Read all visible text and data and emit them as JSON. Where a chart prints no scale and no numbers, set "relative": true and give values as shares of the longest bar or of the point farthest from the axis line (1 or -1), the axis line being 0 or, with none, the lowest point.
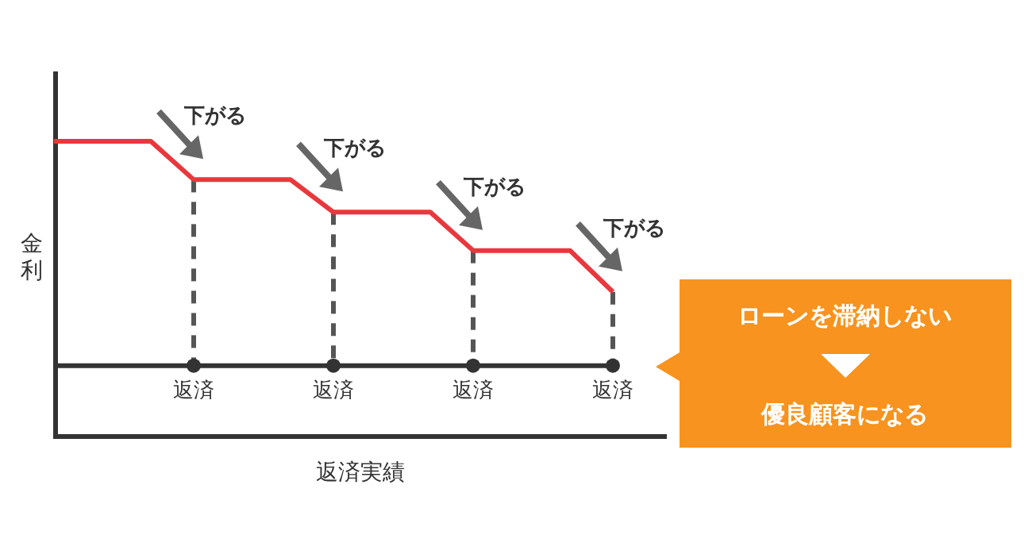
{
  "chart_data": {
    "type": "step",
    "relative": true,
    "ylabel": "金利",
    "xlabel": "返済実績",
    "categories": [
      null,
      "返済",
      "返済",
      "返済",
      "返済"
    ],
    "series": [
      {
        "color": "#e8383d",
        "values": [
          1,
          0.87,
          0.76,
          0.63,
          0.49
        ]
      },
      {
        "type": "line",
        "color": "#333333",
        "marker": "circle",
        "values": [
          0.24,
          0.24,
          0.24,
          0.24,
          0.24
        ]
      }
    ],
    "annotations": [
      "下がる",
      "下がる",
      "下がる",
      "下がる",
      "ローンを滞納しない",
      "優良顧客になる"
    ]
  }
}
